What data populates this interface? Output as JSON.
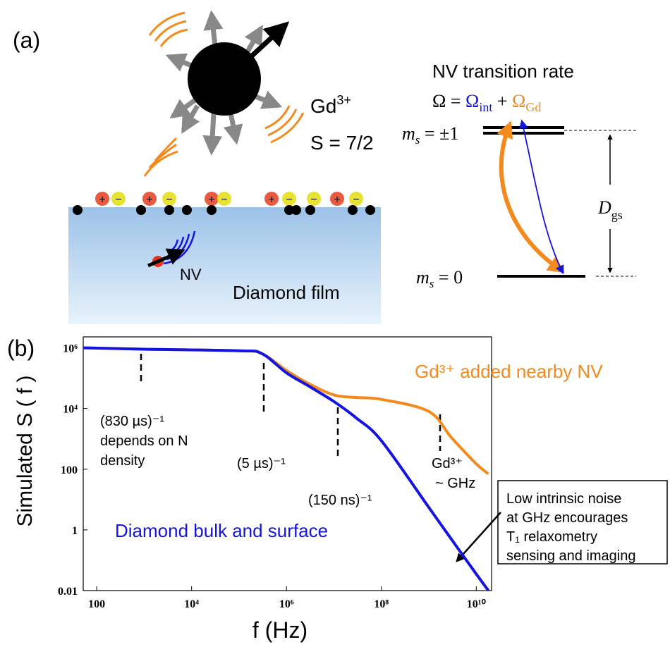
{
  "panel_a": {
    "label": "(a)",
    "gd": "Gd",
    "gd_charge": "3+",
    "spin": "S = 7/2",
    "rate_title": "NV transition rate",
    "omega": [
      "Ω = ",
      "Ω",
      "int",
      " + ",
      "Ω",
      "Gd"
    ],
    "ms_pm1": [
      "m",
      "s",
      " = ±1"
    ],
    "ms_0": [
      "m",
      "s",
      " = 0"
    ],
    "dgs": [
      "D",
      "gs"
    ],
    "nv": "NV",
    "film": "Diamond film",
    "plus": "+",
    "minus": "−"
  },
  "chart_data": {
    "type": "line",
    "panel_label": "(b)",
    "xlabel": "f (Hz)",
    "ylabel": "Simulated S ( f )",
    "log_x": true,
    "log_y": true,
    "xlim": [
      52,
      21000000000
    ],
    "ylim": [
      0.01,
      2300000
    ],
    "xticks": [
      100,
      {
        "value": 10000,
        "label": "10⁴"
      },
      {
        "value": 1000000,
        "label": "10⁶"
      },
      {
        "value": 100000000,
        "label": "10⁸"
      },
      {
        "value": 10000000000,
        "label": "10¹⁰"
      }
    ],
    "yticks": [
      0.01,
      1,
      100,
      {
        "value": 10000,
        "label": "10⁴"
      },
      {
        "value": 1000000,
        "label": "10⁶"
      }
    ],
    "x": [
      52,
      1000,
      100000,
      300000,
      1000000,
      3000000,
      10000000,
      30000000,
      100000000,
      1000000000,
      3000000000,
      10000000000,
      18000000000
    ],
    "series": [
      {
        "name": "Gd³⁺ added nearby NV",
        "color": "#f28a1e",
        "values": [
          1000000,
          900000,
          800000,
          650000,
          180000,
          65000,
          28000,
          23000,
          20000,
          8000,
          1100,
          150,
          70
        ]
      },
      {
        "name": "Diamond bulk and surface",
        "color": "#1414e0",
        "values": [
          1000000,
          900000,
          800000,
          650000,
          150000,
          54000,
          17000,
          4800,
          870,
          5.5,
          0.49,
          0.035,
          0.01
        ]
      }
    ],
    "annotations": [
      [
        "(830 µs)⁻¹",
        "depends on N",
        "density"
      ],
      [
        "(5 µs)⁻¹"
      ],
      [
        "(150 ns)⁻¹"
      ],
      [
        "Gd³⁺",
        "~ GHz"
      ],
      [
        "Low intrinsic noise",
        "at GHz encourages",
        "T₁ relaxometry",
        "sensing and imaging"
      ]
    ]
  }
}
